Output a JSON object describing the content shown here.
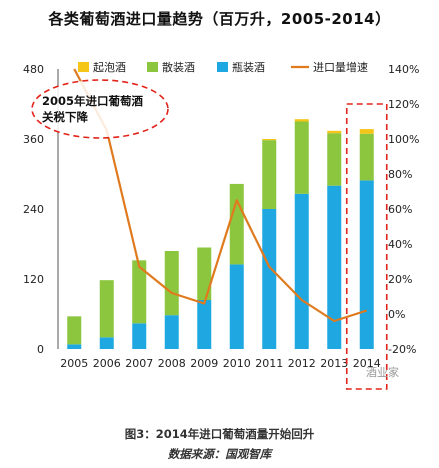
{
  "title": "各类葡萄酒进口量趋势（百万升，2005-2014）",
  "caption": "图3：2014年进口葡萄酒量开始回升",
  "source": "数据来源：国观智库",
  "watermark": "酒业家",
  "chart_data": {
    "type": "bar",
    "stacked": true,
    "categories": [
      "2005",
      "2006",
      "2007",
      "2008",
      "2009",
      "2010",
      "2011",
      "2012",
      "2013",
      "2014"
    ],
    "series": [
      {
        "name": "起泡酒",
        "color": "#f5c518",
        "values": [
          0,
          0,
          0,
          0,
          0,
          0,
          2,
          4,
          4,
          8
        ]
      },
      {
        "name": "散装酒",
        "color": "#8cc63f",
        "values": [
          48,
          98,
          108,
          110,
          90,
          138,
          118,
          124,
          90,
          80
        ]
      },
      {
        "name": "瓶装酒",
        "color": "#1ea7e1",
        "values": [
          8,
          20,
          44,
          58,
          84,
          145,
          240,
          266,
          280,
          289
        ]
      }
    ],
    "line": {
      "name": "进口量增速",
      "color": "#e07a1e",
      "axis": "right",
      "values": [
        140,
        105,
        27,
        12,
        6,
        65,
        27,
        8,
        -4,
        2
      ]
    },
    "y_left": {
      "ticks": [
        0,
        120,
        240,
        360,
        480
      ],
      "ylim": [
        0,
        480
      ]
    },
    "y_right": {
      "ticks": [
        "-20%",
        "0%",
        "20%",
        "40%",
        "60%",
        "80%",
        "100%",
        "120%",
        "140%"
      ],
      "ylim": [
        -20,
        140
      ]
    },
    "legend": "top",
    "annotation": {
      "lines": [
        "2005年进口葡萄酒",
        "关税下降"
      ]
    }
  }
}
